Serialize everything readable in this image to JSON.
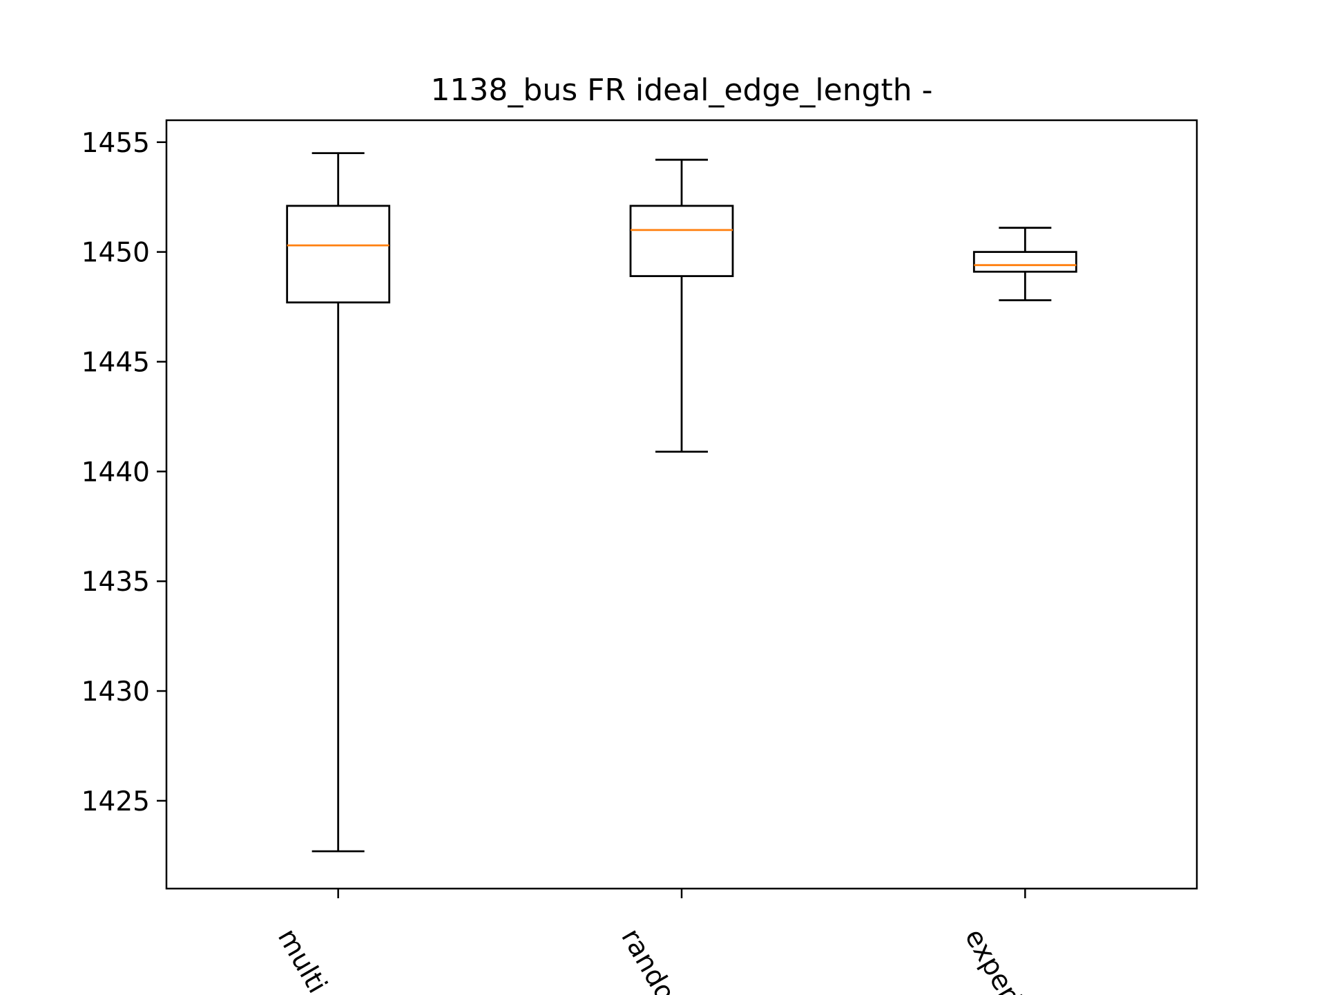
{
  "chart_data": {
    "type": "box",
    "title": "1138_bus FR ideal_edge_length -",
    "xlabel": "",
    "ylabel": "",
    "ylim": [
      1421,
      1456
    ],
    "yticks": [
      1425,
      1430,
      1435,
      1440,
      1445,
      1450,
      1455
    ],
    "categories": [
      "multi_c",
      "random",
      "experie"
    ],
    "boxes": [
      {
        "whisker_low": 1422.7,
        "q1": 1447.7,
        "median": 1450.3,
        "q3": 1452.1,
        "whisker_high": 1454.5
      },
      {
        "whisker_low": 1440.9,
        "q1": 1448.9,
        "median": 1451.0,
        "q3": 1452.1,
        "whisker_high": 1454.2
      },
      {
        "whisker_low": 1447.8,
        "q1": 1449.1,
        "median": 1449.4,
        "q3": 1450.0,
        "whisker_high": 1451.1
      }
    ],
    "colors": {
      "box": "#000000",
      "median": "#ff7f0e",
      "axes": "#000000",
      "background": "#ffffff"
    },
    "grid": false
  }
}
